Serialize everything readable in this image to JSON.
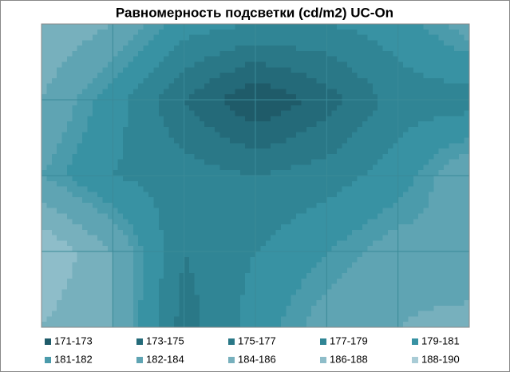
{
  "chart_data": {
    "type": "contour",
    "title": "Равномерность подсветки (cd/m2) UC-On",
    "z": [
      [
        186,
        184,
        180,
        179,
        179,
        180,
        183
      ],
      [
        184,
        180,
        175,
        171,
        174,
        178,
        178
      ],
      [
        182,
        179,
        178,
        177,
        178,
        180,
        184
      ],
      [
        188,
        184,
        177,
        179,
        181,
        183,
        182
      ],
      [
        186,
        184,
        176,
        180,
        183,
        184,
        185
      ]
    ],
    "bands": [
      {
        "label": "171-173",
        "range": [
          171,
          173
        ],
        "color": "#1f5b69"
      },
      {
        "label": "173-175",
        "range": [
          173,
          175
        ],
        "color": "#246a79"
      },
      {
        "label": "175-177",
        "range": [
          175,
          177
        ],
        "color": "#2a7887"
      },
      {
        "label": "177-179",
        "range": [
          177,
          179
        ],
        "color": "#308595"
      },
      {
        "label": "179-181",
        "range": [
          179,
          181
        ],
        "color": "#3892a3"
      },
      {
        "label": "181-182",
        "range": [
          181,
          182
        ],
        "color": "#4b9bab"
      },
      {
        "label": "182-184",
        "range": [
          182,
          184
        ],
        "color": "#5fa4b3"
      },
      {
        "label": "184-186",
        "range": [
          184,
          186
        ],
        "color": "#77b0bd"
      },
      {
        "label": "186-188",
        "range": [
          186,
          188
        ],
        "color": "#8ebdc9"
      },
      {
        "label": "188-190",
        "range": [
          188,
          190
        ],
        "color": "#a9ccd6"
      }
    ]
  }
}
